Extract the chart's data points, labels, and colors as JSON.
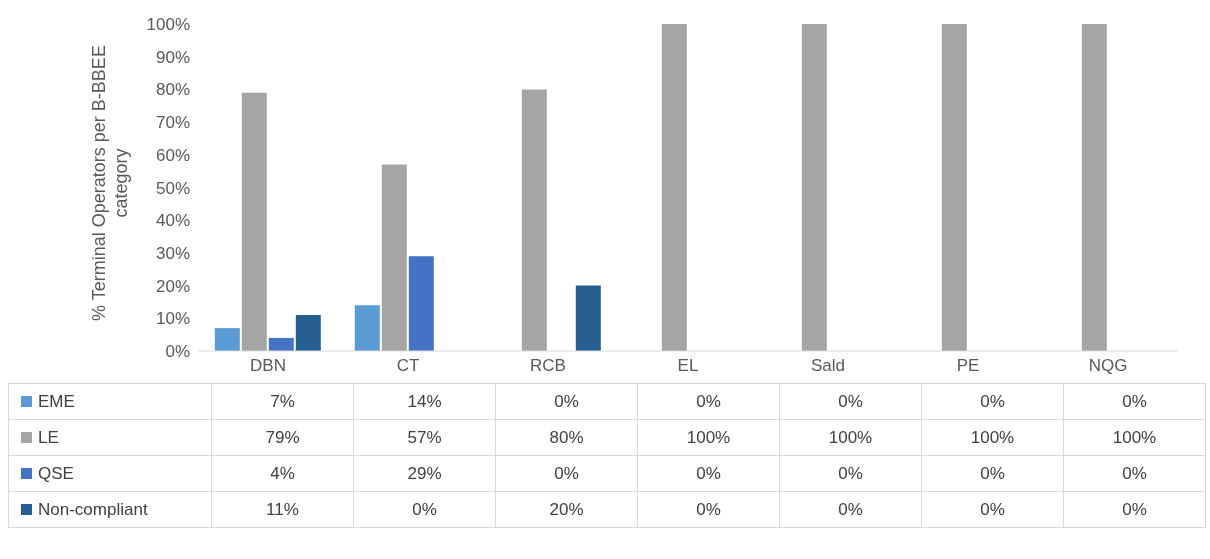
{
  "chart_data": {
    "type": "bar",
    "ylabel": "% Terminal Operators per B-BBEE category",
    "categories": [
      "DBN",
      "CT",
      "RCB",
      "EL",
      "Sald",
      "PE",
      "NQG"
    ],
    "series": [
      {
        "name": "EME",
        "color": "#5b9bd5",
        "values": [
          7,
          14,
          0,
          0,
          0,
          0,
          0
        ],
        "value_labels": [
          "7%",
          "14%",
          "0%",
          "0%",
          "0%",
          "0%",
          "0%"
        ]
      },
      {
        "name": "LE",
        "color": "#a5a5a5",
        "values": [
          79,
          57,
          80,
          100,
          100,
          100,
          100
        ],
        "value_labels": [
          "79%",
          "57%",
          "80%",
          "100%",
          "100%",
          "100%",
          "100%"
        ]
      },
      {
        "name": "QSE",
        "color": "#4472c4",
        "values": [
          4,
          29,
          0,
          0,
          0,
          0,
          0
        ],
        "value_labels": [
          "4%",
          "29%",
          "0%",
          "0%",
          "0%",
          "0%",
          "0%"
        ]
      },
      {
        "name": "Non-compliant",
        "color": "#255e91",
        "values": [
          11,
          0,
          20,
          0,
          0,
          0,
          0
        ],
        "value_labels": [
          "11%",
          "0%",
          "20%",
          "0%",
          "0%",
          "0%",
          "0%"
        ]
      }
    ],
    "ylim": [
      0,
      100
    ],
    "yticks": [
      {
        "value": 0,
        "label": "0%"
      },
      {
        "value": 10,
        "label": "10%"
      },
      {
        "value": 20,
        "label": "20%"
      },
      {
        "value": 30,
        "label": "30%"
      },
      {
        "value": 40,
        "label": "40%"
      },
      {
        "value": 50,
        "label": "50%"
      },
      {
        "value": 60,
        "label": "60%"
      },
      {
        "value": 70,
        "label": "70%"
      },
      {
        "value": 80,
        "label": "80%"
      },
      {
        "value": 90,
        "label": "90%"
      },
      {
        "value": 100,
        "label": "100%"
      }
    ],
    "grid": false,
    "legend": "bottom"
  }
}
